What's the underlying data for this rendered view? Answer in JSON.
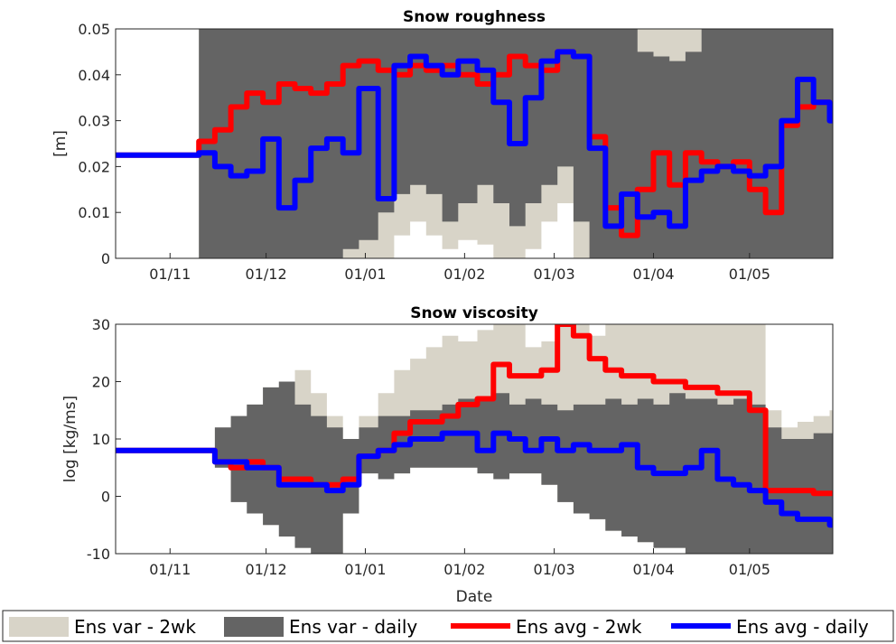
{
  "chart_data": [
    {
      "type": "line",
      "title": "Snow roughness",
      "ylabel": "[m]",
      "xlabel": "",
      "ylim": [
        0,
        0.05
      ],
      "yticks": [
        "0",
        "0.01",
        "0.02",
        "0.03",
        "0.04",
        "0.05"
      ],
      "xticks": [
        "01/11",
        "01/12",
        "01/01",
        "01/02",
        "01/03",
        "01/04",
        "01/05"
      ],
      "x": [
        "2016-10-15",
        "2016-11-10",
        "2016-11-15",
        "2016-11-20",
        "2016-11-25",
        "2016-11-30",
        "2016-12-05",
        "2016-12-10",
        "2016-12-15",
        "2016-12-20",
        "2016-12-25",
        "2016-12-30",
        "2017-01-05",
        "2017-01-10",
        "2017-01-15",
        "2017-01-20",
        "2017-01-25",
        "2017-01-30",
        "2017-02-05",
        "2017-02-10",
        "2017-02-15",
        "2017-02-20",
        "2017-02-25",
        "2017-03-02",
        "2017-03-07",
        "2017-03-12",
        "2017-03-17",
        "2017-03-22",
        "2017-03-27",
        "2017-04-01",
        "2017-04-06",
        "2017-04-11",
        "2017-04-16",
        "2017-04-21",
        "2017-04-26",
        "2017-05-01",
        "2017-05-06",
        "2017-05-11",
        "2017-05-16",
        "2017-05-21",
        "2017-05-26"
      ],
      "series": [
        {
          "name": "Ens var - 2wk",
          "color": "#d8d4c8",
          "upper": [
            null,
            0.05,
            0.05,
            0.05,
            0.05,
            0.05,
            0.05,
            0.05,
            0.05,
            0.05,
            0.05,
            0.05,
            0.05,
            0.05,
            0.05,
            0.05,
            0.05,
            0.05,
            0.05,
            0.05,
            0.05,
            0.05,
            0.05,
            0.05,
            0.05,
            0.05,
            0.05,
            0.05,
            0.05,
            0.05,
            0.05,
            0.05,
            0.05,
            0.05,
            0.05,
            0.05,
            0.05,
            0.05,
            0.05,
            0.05,
            0.05
          ],
          "lower": [
            null,
            0,
            0,
            0,
            0,
            0,
            0,
            0,
            0,
            0,
            0,
            0,
            0,
            0.005,
            0.008,
            0.005,
            0.002,
            0.004,
            0.003,
            0,
            0,
            0.002,
            0.008,
            0.012,
            0,
            0,
            0,
            0,
            0,
            0,
            0,
            0,
            0,
            0,
            0,
            0,
            0,
            0,
            0,
            0,
            0
          ]
        },
        {
          "name": "Ens var - daily",
          "color": "#646464",
          "upper": [
            null,
            0.05,
            0.05,
            0.05,
            0.05,
            0.05,
            0.05,
            0.05,
            0.05,
            0.05,
            0.05,
            0.05,
            0.05,
            0.05,
            0.05,
            0.05,
            0.05,
            0.05,
            0.05,
            0.05,
            0.05,
            0.05,
            0.05,
            0.05,
            0.05,
            0.05,
            0.05,
            0.05,
            0.045,
            0.044,
            0.043,
            0.045,
            0.05,
            0.05,
            0.05,
            0.05,
            0.05,
            0.05,
            0.05,
            0.05,
            0.05
          ],
          "lower": [
            null,
            0,
            0,
            0,
            0,
            0,
            0,
            0,
            0,
            0,
            0.002,
            0.004,
            0.01,
            0.014,
            0.016,
            0.014,
            0.008,
            0.012,
            0.016,
            0.012,
            0.007,
            0.012,
            0.016,
            0.02,
            0.008,
            0,
            0,
            0,
            0,
            0,
            0,
            0,
            0,
            0,
            0,
            0,
            0,
            0,
            0,
            0,
            0
          ]
        },
        {
          "name": "Ens avg - 2wk",
          "color": "#ff0000",
          "values": [
            0.0225,
            0.0255,
            0.028,
            0.033,
            0.036,
            0.034,
            0.038,
            0.037,
            0.036,
            0.038,
            0.042,
            0.043,
            0.041,
            0.04,
            0.042,
            0.041,
            0.042,
            0.04,
            0.038,
            0.04,
            0.044,
            0.042,
            0.041,
            0.045,
            0.044,
            0.0265,
            0.011,
            0.005,
            0.015,
            0.023,
            0.016,
            0.023,
            0.021,
            0.02,
            0.021,
            0.015,
            0.01,
            0.029,
            0.033,
            0.034,
            0.031
          ]
        },
        {
          "name": "Ens avg - daily",
          "color": "#0000ff",
          "values": [
            0.0225,
            0.023,
            0.02,
            0.018,
            0.019,
            0.026,
            0.011,
            0.017,
            0.024,
            0.026,
            0.023,
            0.037,
            0.013,
            0.042,
            0.044,
            0.042,
            0.04,
            0.043,
            0.041,
            0.034,
            0.025,
            0.035,
            0.043,
            0.045,
            0.044,
            0.024,
            0.007,
            0.014,
            0.009,
            0.01,
            0.007,
            0.017,
            0.019,
            0.02,
            0.019,
            0.018,
            0.02,
            0.03,
            0.039,
            0.034,
            0.03
          ]
        }
      ]
    },
    {
      "type": "line",
      "title": "Snow viscosity",
      "ylabel": "log [kg/ms]",
      "xlabel": "Date",
      "ylim": [
        -10,
        30
      ],
      "yticks": [
        "-10",
        "0",
        "10",
        "20",
        "30"
      ],
      "xticks": [
        "01/11",
        "01/12",
        "01/01",
        "01/02",
        "01/03",
        "01/04",
        "01/05"
      ],
      "x": [
        "2016-10-15",
        "2016-11-10",
        "2016-11-15",
        "2016-11-20",
        "2016-11-25",
        "2016-11-30",
        "2016-12-05",
        "2016-12-10",
        "2016-12-15",
        "2016-12-20",
        "2016-12-25",
        "2016-12-30",
        "2017-01-05",
        "2017-01-10",
        "2017-01-15",
        "2017-01-20",
        "2017-01-25",
        "2017-01-30",
        "2017-02-05",
        "2017-02-10",
        "2017-02-15",
        "2017-02-20",
        "2017-02-25",
        "2017-03-02",
        "2017-03-07",
        "2017-03-12",
        "2017-03-17",
        "2017-03-22",
        "2017-03-27",
        "2017-04-01",
        "2017-04-06",
        "2017-04-11",
        "2017-04-16",
        "2017-04-21",
        "2017-04-26",
        "2017-05-01",
        "2017-05-06",
        "2017-05-11",
        "2017-05-16",
        "2017-05-21",
        "2017-05-26"
      ],
      "series": [
        {
          "name": "Ens var - 2wk",
          "color": "#d8d4c8",
          "upper": [
            null,
            8,
            12,
            14,
            16,
            19,
            20,
            22,
            18,
            14,
            10,
            14,
            18,
            22,
            24,
            26,
            28,
            27,
            29,
            30,
            30,
            26,
            27,
            30,
            30,
            28,
            30,
            30,
            30,
            30,
            30,
            30,
            30,
            30,
            30,
            30,
            15,
            12,
            13,
            14,
            15
          ],
          "lower": [
            null,
            8,
            5,
            -1,
            -3,
            -5,
            -7,
            -9,
            -10,
            -10,
            -3,
            4,
            3,
            4,
            5,
            5,
            5,
            5,
            4,
            3,
            4,
            4,
            2,
            -1,
            -3,
            -4,
            -6,
            -7,
            -8,
            -9,
            -9,
            -10,
            -10,
            -10,
            -10,
            -10,
            -10,
            -10,
            -10,
            -10,
            -10
          ]
        },
        {
          "name": "Ens var - daily",
          "color": "#646464",
          "upper": [
            null,
            8,
            12,
            14,
            16,
            19,
            20,
            16,
            14,
            12,
            10,
            12,
            14,
            14,
            15,
            15,
            16,
            17,
            17,
            18,
            16,
            17,
            16,
            15,
            16,
            16,
            17,
            16,
            17,
            16,
            18,
            17,
            17,
            16,
            17,
            16,
            12,
            10,
            10,
            11,
            11
          ],
          "lower": [
            null,
            8,
            5,
            -1,
            -3,
            -5,
            -7,
            -9,
            -10,
            -10,
            -3,
            4,
            3,
            4,
            5,
            5,
            5,
            5,
            4,
            3,
            4,
            4,
            2,
            -1,
            -3,
            -4,
            -6,
            -7,
            -8,
            -9,
            -9,
            -10,
            -10,
            -10,
            -10,
            -10,
            -10,
            -10,
            -10,
            -10,
            -10
          ]
        },
        {
          "name": "Ens avg - 2wk",
          "color": "#ff0000",
          "values": [
            8,
            8,
            6,
            5,
            6,
            5,
            3,
            3,
            2,
            2,
            3,
            7,
            8,
            11,
            13,
            13,
            14,
            16,
            17,
            23,
            21,
            21,
            22,
            30,
            28,
            24,
            22,
            21,
            21,
            20,
            20,
            19,
            19,
            18,
            18,
            15,
            1,
            1,
            1,
            0.5,
            0.5
          ]
        },
        {
          "name": "Ens avg - daily",
          "color": "#0000ff",
          "values": [
            8,
            8,
            6,
            6,
            5,
            5,
            2,
            2,
            2,
            1,
            2,
            7,
            8,
            9,
            10,
            10,
            11,
            11,
            8,
            11,
            10,
            8,
            10,
            8,
            9,
            8,
            8,
            9,
            5,
            4,
            4,
            5,
            8,
            3,
            2,
            1,
            -1,
            -3,
            -4,
            -4,
            -5
          ]
        }
      ]
    }
  ],
  "legend": [
    {
      "label": "Ens var - 2wk",
      "kind": "patch",
      "color": "#d8d4c8"
    },
    {
      "label": "Ens var - daily",
      "kind": "patch",
      "color": "#646464"
    },
    {
      "label": "Ens avg - 2wk",
      "kind": "line",
      "color": "#ff0000"
    },
    {
      "label": "Ens avg - daily",
      "kind": "line",
      "color": "#0000ff"
    }
  ]
}
